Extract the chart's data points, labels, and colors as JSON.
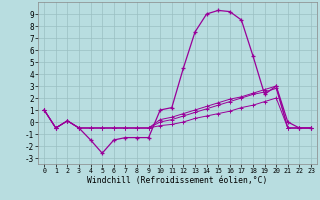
{
  "xlabel": "Windchill (Refroidissement éolien,°C)",
  "background_color": "#b8dde0",
  "grid_color": "#9bbfc2",
  "line_color": "#990099",
  "x_hours": [
    0,
    1,
    2,
    3,
    4,
    5,
    6,
    7,
    8,
    9,
    10,
    11,
    12,
    13,
    14,
    15,
    16,
    17,
    18,
    19,
    20,
    21,
    22,
    23
  ],
  "windchill": [
    1.0,
    -0.5,
    0.1,
    -0.5,
    -1.5,
    -2.6,
    -1.5,
    -1.3,
    -1.3,
    -1.3,
    1.0,
    1.2,
    4.5,
    7.5,
    9.0,
    9.3,
    9.2,
    8.5,
    5.5,
    2.3,
    3.0,
    0.0,
    -0.5,
    -0.5
  ],
  "ref_line1": [
    1.0,
    -0.5,
    0.1,
    -0.5,
    -0.5,
    -0.5,
    -0.5,
    -0.5,
    -0.5,
    -0.5,
    -0.3,
    -0.2,
    0.0,
    0.3,
    0.5,
    0.7,
    0.9,
    1.2,
    1.4,
    1.7,
    2.0,
    -0.5,
    -0.5,
    -0.5
  ],
  "ref_line2": [
    1.0,
    -0.5,
    0.1,
    -0.5,
    -0.5,
    -0.5,
    -0.5,
    -0.5,
    -0.5,
    -0.5,
    0.0,
    0.2,
    0.5,
    0.8,
    1.1,
    1.4,
    1.7,
    2.0,
    2.3,
    2.5,
    2.8,
    -0.5,
    -0.5,
    -0.5
  ],
  "ref_line3": [
    1.0,
    -0.5,
    0.1,
    -0.5,
    -0.5,
    -0.5,
    -0.5,
    -0.5,
    -0.5,
    -0.5,
    0.2,
    0.4,
    0.7,
    1.0,
    1.3,
    1.6,
    1.9,
    2.1,
    2.4,
    2.7,
    3.0,
    -0.5,
    -0.5,
    -0.5
  ],
  "ylim": [
    -3.5,
    10.0
  ],
  "xlim": [
    -0.5,
    23.5
  ],
  "yticks": [
    -3,
    -2,
    -1,
    0,
    1,
    2,
    3,
    4,
    5,
    6,
    7,
    8,
    9
  ],
  "xticks": [
    0,
    1,
    2,
    3,
    4,
    5,
    6,
    7,
    8,
    9,
    10,
    11,
    12,
    13,
    14,
    15,
    16,
    17,
    18,
    19,
    20,
    21,
    22,
    23
  ]
}
